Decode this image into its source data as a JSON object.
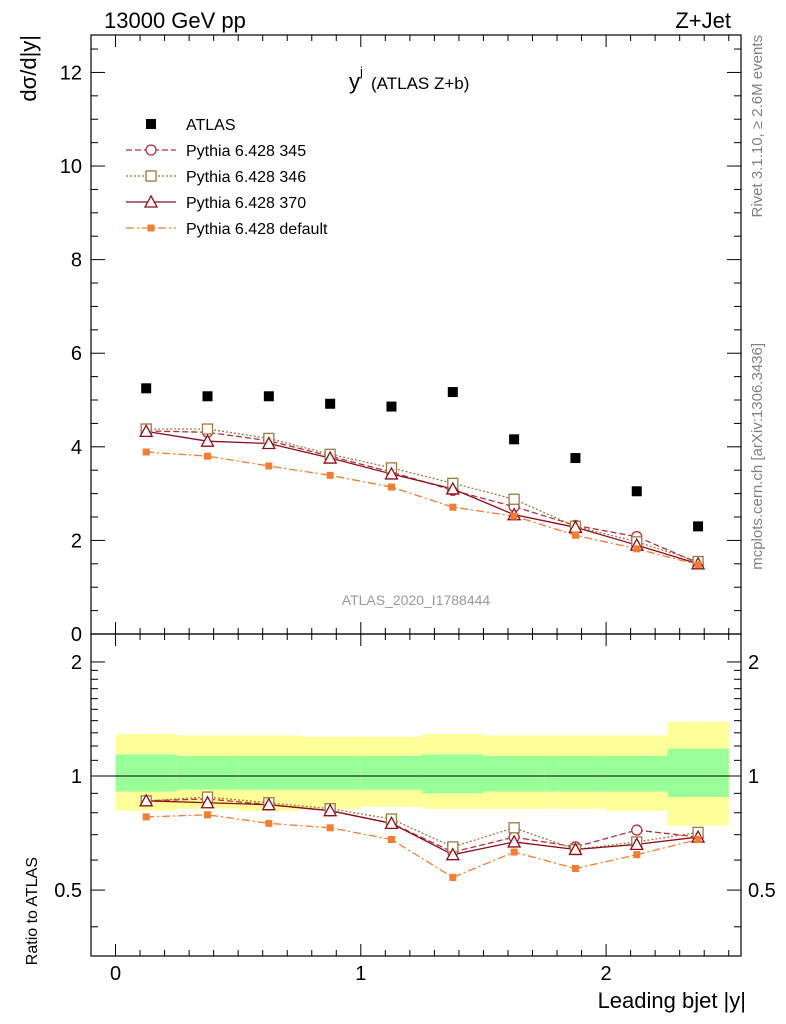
{
  "header": {
    "left": "13000 GeV pp",
    "right": "Z+Jet"
  },
  "side_text": {
    "rivet": "Rivet 3.1.10, ≥ 2.6M events",
    "mcplots": "mcplots.cern.ch [arXiv:1306.3436]"
  },
  "chart_data": {
    "type": "line",
    "title": "y",
    "title_sup": "j",
    "title_suffix": "(ATLAS Z+b)",
    "analysis_label": "ATLAS_2020_I1788444",
    "xlabel": "Leading bjet |y|",
    "ylabel_main": "dσ/d|y|",
    "ylabel_ratio": "Ratio to ATLAS",
    "xlim": [
      -0.1,
      2.55
    ],
    "ylim_main": [
      0,
      12.8
    ],
    "ylim_ratio": [
      0.335,
      2.37
    ],
    "x_ticks": [
      "0",
      "1",
      "2"
    ],
    "y_ticks_main": [
      "0",
      "2",
      "4",
      "6",
      "8",
      "10",
      "12"
    ],
    "y_ticks_ratio": [
      "0.5",
      "1",
      "2"
    ],
    "legend_position": "top-left",
    "bin_edges": [
      0,
      0.25,
      0.5,
      0.75,
      1.0,
      1.25,
      1.5,
      1.75,
      2.0,
      2.25,
      2.5
    ],
    "x": [
      0.125,
      0.375,
      0.625,
      0.875,
      1.125,
      1.375,
      1.625,
      1.875,
      2.125,
      2.375
    ],
    "data": {
      "name": "ATLAS",
      "values": [
        5.25,
        5.08,
        5.08,
        4.92,
        4.86,
        5.17,
        4.16,
        3.76,
        3.05,
        2.3
      ],
      "band_yellow": [
        [
          0.81,
          1.29
        ],
        [
          0.82,
          1.28
        ],
        [
          0.81,
          1.28
        ],
        [
          0.82,
          1.27
        ],
        [
          0.83,
          1.27
        ],
        [
          0.82,
          1.29
        ],
        [
          0.82,
          1.28
        ],
        [
          0.82,
          1.28
        ],
        [
          0.81,
          1.28
        ],
        [
          0.74,
          1.39
        ]
      ],
      "band_green": [
        [
          0.91,
          1.14
        ],
        [
          0.92,
          1.13
        ],
        [
          0.92,
          1.13
        ],
        [
          0.92,
          1.13
        ],
        [
          0.92,
          1.13
        ],
        [
          0.9,
          1.14
        ],
        [
          0.91,
          1.13
        ],
        [
          0.91,
          1.13
        ],
        [
          0.91,
          1.13
        ],
        [
          0.88,
          1.18
        ]
      ]
    },
    "series": [
      {
        "name": "Pythia 6.428 345",
        "color": "#b4303c",
        "marker": "circle-open",
        "dash": "6,3",
        "values": [
          4.34,
          4.31,
          4.13,
          3.8,
          3.46,
          3.07,
          2.72,
          2.32,
          2.08,
          1.52
        ],
        "ratio": [
          0.86,
          0.87,
          0.84,
          0.81,
          0.75,
          0.63,
          0.69,
          0.65,
          0.72,
          0.69
        ]
      },
      {
        "name": "Pythia 6.428 346",
        "color": "#9c7a3c",
        "marker": "square-open",
        "dash": "2,2",
        "values": [
          4.38,
          4.38,
          4.18,
          3.84,
          3.55,
          3.22,
          2.88,
          2.3,
          1.97,
          1.55
        ],
        "ratio": [
          0.86,
          0.88,
          0.85,
          0.82,
          0.77,
          0.65,
          0.73,
          0.64,
          0.67,
          0.71
        ]
      },
      {
        "name": "Pythia 6.428 370",
        "color": "#8c0c1c",
        "marker": "triangle-open",
        "dash": "",
        "values": [
          4.33,
          4.12,
          4.07,
          3.76,
          3.42,
          3.1,
          2.55,
          2.28,
          1.9,
          1.5
        ],
        "ratio": [
          0.86,
          0.85,
          0.84,
          0.81,
          0.75,
          0.62,
          0.67,
          0.64,
          0.66,
          0.69
        ]
      },
      {
        "name": "Pythia 6.428 default",
        "color": "#f57c30",
        "marker": "square-filled",
        "dash": "8,3,2,3",
        "values": [
          3.89,
          3.8,
          3.59,
          3.39,
          3.14,
          2.71,
          2.52,
          2.11,
          1.82,
          1.48
        ],
        "ratio": [
          0.78,
          0.79,
          0.75,
          0.73,
          0.68,
          0.54,
          0.63,
          0.57,
          0.62,
          0.68
        ]
      }
    ]
  }
}
